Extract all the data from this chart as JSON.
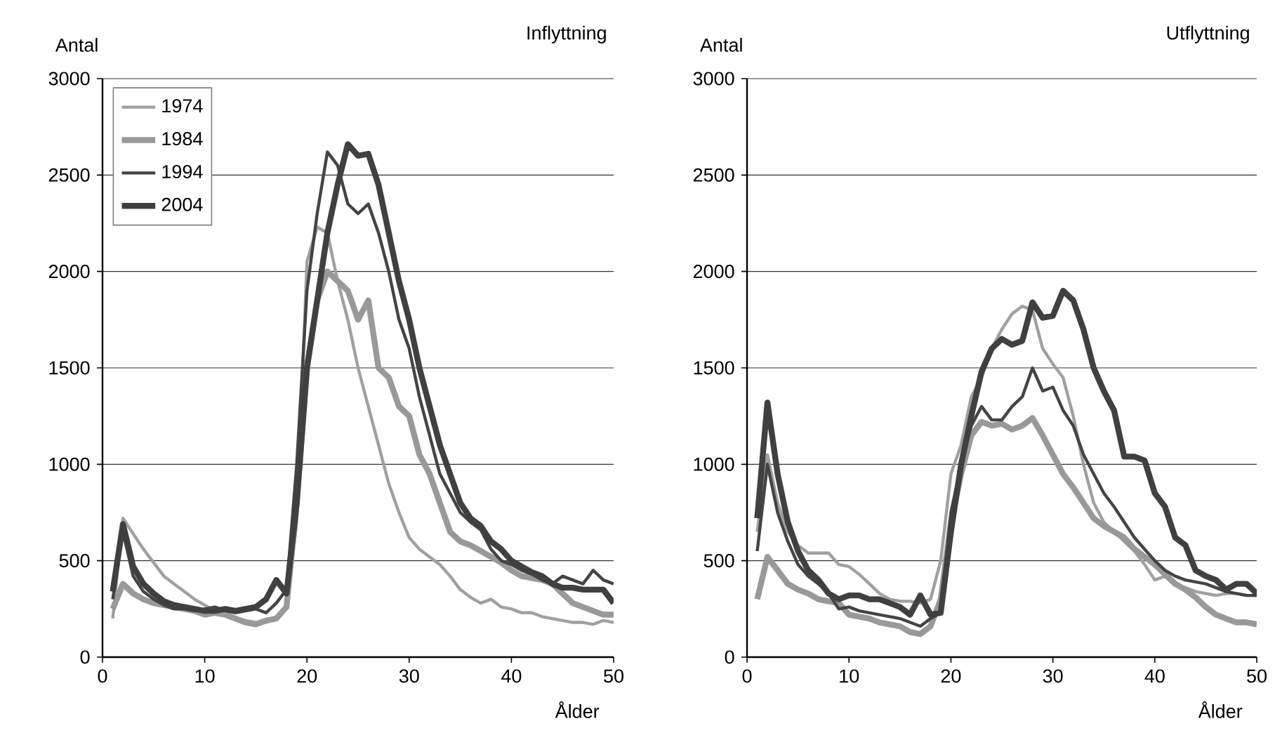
{
  "chart_data": [
    {
      "type": "line",
      "title": "Inflyttning",
      "ylabel": "Antal",
      "xlabel": "Ålder",
      "x": [
        1,
        2,
        3,
        4,
        5,
        6,
        7,
        8,
        9,
        10,
        11,
        12,
        13,
        14,
        15,
        16,
        17,
        18,
        19,
        20,
        21,
        22,
        23,
        24,
        25,
        26,
        27,
        28,
        29,
        30,
        31,
        32,
        33,
        34,
        35,
        36,
        37,
        38,
        39,
        40,
        41,
        42,
        43,
        44,
        45,
        46,
        47,
        48,
        49,
        50
      ],
      "xlim": [
        0,
        50
      ],
      "ylim": [
        0,
        3000
      ],
      "xticks": [
        0,
        10,
        20,
        30,
        40,
        50
      ],
      "yticks": [
        0,
        500,
        1000,
        1500,
        2000,
        2500,
        3000
      ],
      "grid": "y",
      "legend": "top left",
      "marker": "none",
      "line_style": "solid",
      "series": [
        {
          "name": "1974",
          "color": "#a0a0a0",
          "values": [
            200,
            720,
            640,
            560,
            490,
            420,
            380,
            340,
            300,
            270,
            240,
            220,
            200,
            190,
            180,
            180,
            200,
            260,
            700,
            2050,
            2230,
            2200,
            1950,
            1750,
            1500,
            1300,
            1100,
            900,
            750,
            620,
            560,
            520,
            480,
            420,
            350,
            310,
            280,
            300,
            260,
            250,
            230,
            230,
            210,
            200,
            190,
            180,
            180,
            170,
            190,
            180
          ]
        },
        {
          "name": "1984",
          "color": "#999999",
          "values": [
            250,
            380,
            330,
            300,
            280,
            270,
            260,
            250,
            240,
            220,
            230,
            220,
            200,
            180,
            170,
            190,
            200,
            260,
            800,
            1500,
            1850,
            2000,
            1950,
            1900,
            1750,
            1850,
            1500,
            1450,
            1300,
            1250,
            1050,
            950,
            800,
            650,
            600,
            580,
            550,
            520,
            490,
            450,
            420,
            410,
            400,
            380,
            330,
            280,
            260,
            240,
            220,
            220
          ]
        },
        {
          "name": "1994",
          "color": "#444444",
          "values": [
            300,
            650,
            420,
            340,
            300,
            270,
            250,
            250,
            240,
            250,
            260,
            240,
            230,
            240,
            250,
            230,
            280,
            350,
            1000,
            1900,
            2300,
            2620,
            2550,
            2350,
            2300,
            2350,
            2200,
            2000,
            1750,
            1600,
            1350,
            1150,
            950,
            850,
            750,
            700,
            660,
            560,
            500,
            480,
            450,
            430,
            400,
            380,
            420,
            400,
            380,
            450,
            400,
            380
          ]
        },
        {
          "name": "2004",
          "color": "#404040",
          "values": [
            340,
            690,
            470,
            380,
            330,
            290,
            270,
            260,
            250,
            240,
            240,
            250,
            240,
            250,
            260,
            300,
            400,
            330,
            800,
            1500,
            1850,
            2200,
            2450,
            2660,
            2600,
            2610,
            2450,
            2200,
            1950,
            1750,
            1500,
            1300,
            1100,
            950,
            800,
            720,
            680,
            600,
            560,
            500,
            470,
            440,
            420,
            380,
            360,
            360,
            350,
            350,
            350,
            280
          ]
        }
      ]
    },
    {
      "type": "line",
      "title": "Utflyttning",
      "ylabel": "Antal",
      "xlabel": "Ålder",
      "x": [
        1,
        2,
        3,
        4,
        5,
        6,
        7,
        8,
        9,
        10,
        11,
        12,
        13,
        14,
        15,
        16,
        17,
        18,
        19,
        20,
        21,
        22,
        23,
        24,
        25,
        26,
        27,
        28,
        29,
        30,
        31,
        32,
        33,
        34,
        35,
        36,
        37,
        38,
        39,
        40,
        41,
        42,
        43,
        44,
        45,
        46,
        47,
        48,
        49,
        50
      ],
      "xlim": [
        0,
        50
      ],
      "ylim": [
        0,
        3000
      ],
      "xticks": [
        0,
        10,
        20,
        30,
        40,
        50
      ],
      "yticks": [
        0,
        500,
        1000,
        1500,
        2000,
        2500,
        3000
      ],
      "grid": "y",
      "marker": "none",
      "line_style": "solid",
      "series": [
        {
          "color": "#a0a0a0",
          "values": [
            650,
            1050,
            800,
            650,
            580,
            540,
            540,
            540,
            480,
            470,
            430,
            380,
            330,
            300,
            290,
            290,
            280,
            300,
            500,
            950,
            1100,
            1350,
            1450,
            1600,
            1700,
            1780,
            1820,
            1800,
            1600,
            1520,
            1450,
            1250,
            1000,
            800,
            700,
            650,
            600,
            550,
            480,
            400,
            420,
            380,
            360,
            340,
            330,
            320,
            330,
            330,
            320,
            320
          ]
        },
        {
          "color": "#999999",
          "values": [
            300,
            520,
            450,
            380,
            350,
            330,
            300,
            290,
            280,
            220,
            210,
            200,
            180,
            170,
            160,
            130,
            120,
            160,
            300,
            700,
            950,
            1150,
            1220,
            1200,
            1210,
            1180,
            1200,
            1240,
            1150,
            1050,
            950,
            880,
            800,
            720,
            680,
            650,
            620,
            560,
            520,
            480,
            430,
            380,
            350,
            310,
            260,
            220,
            200,
            180,
            180,
            170
          ]
        },
        {
          "color": "#444444",
          "values": [
            550,
            1000,
            750,
            600,
            480,
            420,
            380,
            330,
            250,
            260,
            240,
            230,
            220,
            210,
            200,
            180,
            160,
            200,
            230,
            750,
            1000,
            1200,
            1300,
            1230,
            1230,
            1300,
            1350,
            1500,
            1380,
            1400,
            1280,
            1200,
            1050,
            950,
            850,
            780,
            700,
            620,
            560,
            500,
            450,
            420,
            400,
            390,
            380,
            360,
            340,
            330,
            320,
            320
          ]
        },
        {
          "color": "#404040",
          "values": [
            720,
            1320,
            950,
            700,
            550,
            450,
            400,
            330,
            300,
            320,
            320,
            300,
            300,
            280,
            260,
            220,
            320,
            220,
            230,
            650,
            1000,
            1250,
            1480,
            1600,
            1650,
            1620,
            1640,
            1840,
            1760,
            1770,
            1900,
            1850,
            1700,
            1500,
            1380,
            1280,
            1040,
            1040,
            1020,
            850,
            780,
            620,
            580,
            450,
            420,
            400,
            350,
            380,
            380,
            330
          ]
        }
      ]
    }
  ]
}
